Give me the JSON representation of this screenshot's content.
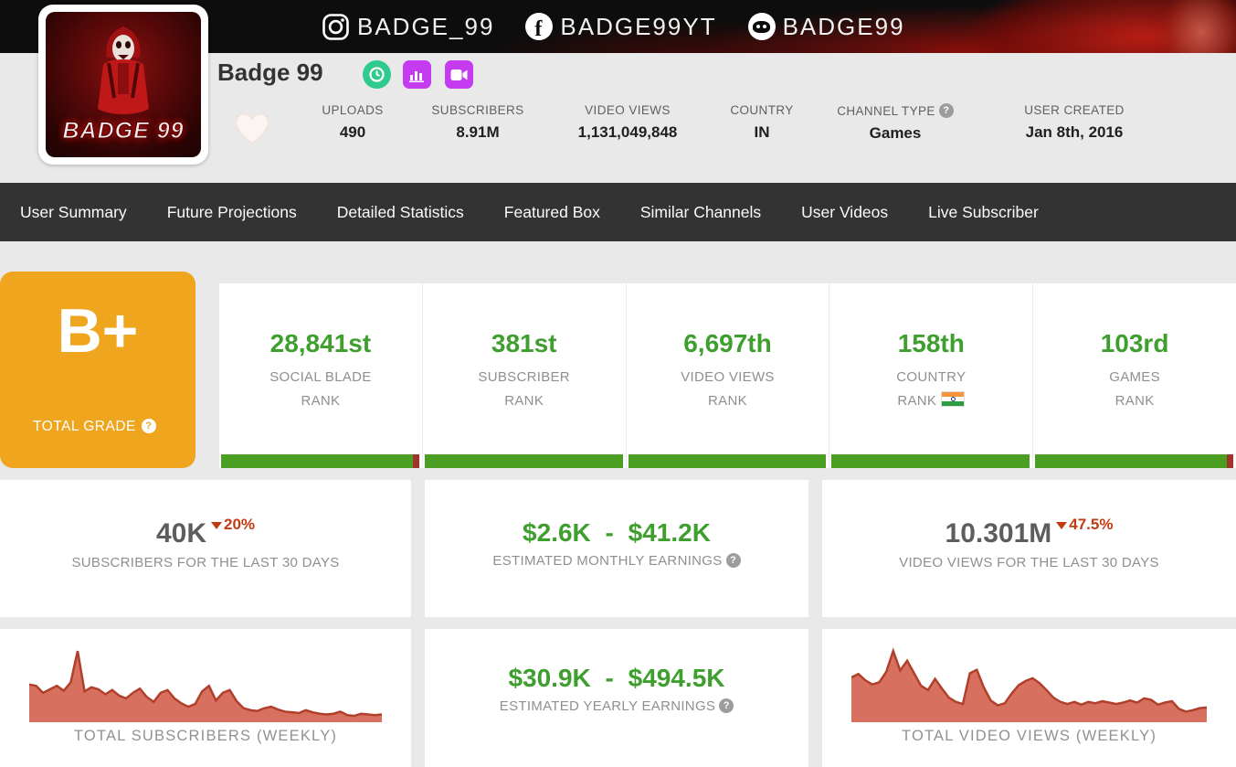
{
  "banner": {
    "instagram_handle": "BADGE_99",
    "facebook_handle": "BADGE99YT",
    "discord_handle": "BADGE99"
  },
  "icons": {
    "help": "?",
    "facebook_glyph": "f"
  },
  "header": {
    "channel_name": "Badge 99",
    "avatar_text": "BADGE 99",
    "stats": [
      {
        "label": "UPLOADS",
        "value": "490"
      },
      {
        "label": "SUBSCRIBERS",
        "value": "8.91M"
      },
      {
        "label": "VIDEO VIEWS",
        "value": "1,131,049,848"
      },
      {
        "label": "COUNTRY",
        "value": "IN"
      },
      {
        "label": "CHANNEL TYPE",
        "value": "Games"
      },
      {
        "label": "USER CREATED",
        "value": "Jan 8th, 2016"
      }
    ]
  },
  "nav": {
    "tabs": [
      {
        "label": "User Summary"
      },
      {
        "label": "Future Projections"
      },
      {
        "label": "Detailed Statistics"
      },
      {
        "label": "Featured Box"
      },
      {
        "label": "Similar Channels"
      },
      {
        "label": "User Videos"
      },
      {
        "label": "Live Subscriber"
      }
    ]
  },
  "grade": {
    "value": "B+",
    "label": "TOTAL GRADE"
  },
  "ranks": [
    {
      "value": "28,841st",
      "label1": "SOCIAL BLADE",
      "label2": "RANK"
    },
    {
      "value": "381st",
      "label1": "SUBSCRIBER",
      "label2": "RANK"
    },
    {
      "value": "6,697th",
      "label1": "VIDEO VIEWS",
      "label2": "RANK"
    },
    {
      "value": "158th",
      "label1": "COUNTRY",
      "label2": "RANK",
      "flag": "IN"
    },
    {
      "value": "103rd",
      "label1": "GAMES",
      "label2": "RANK"
    }
  ],
  "metrics": [
    {
      "value": "40K",
      "change": "20%",
      "direction": "down",
      "label": "SUBSCRIBERS FOR THE LAST 30 DAYS"
    },
    {
      "value": "$2.6K - $41.2K",
      "label": "ESTIMATED MONTHLY EARNINGS"
    },
    {
      "value": "10.301M",
      "change": "47.5%",
      "direction": "down",
      "label": "VIDEO VIEWS FOR THE LAST 30 DAYS"
    }
  ],
  "yearly": {
    "value": "$30.9K - $494.5K",
    "label": "ESTIMATED YEARLY EARNINGS"
  },
  "colors": {
    "accent_green": "#3e9e2e",
    "bar_green": "#4a9e21",
    "bar_red_tip": "#a1342a",
    "alert_red": "#c23a12",
    "grade_orange": "#efa51d",
    "nav_dark": "#333333",
    "chart_fill": "#d8705f",
    "chart_stroke": "#b0402b"
  },
  "chart_data": [
    {
      "type": "area",
      "title": "TOTAL SUBSCRIBERS (WEEKLY)",
      "x_unit": "week",
      "ylabel": "",
      "legend": false,
      "grid": false,
      "fill": "#d8705f",
      "stroke": "#b0402b",
      "values": [
        52,
        50,
        40,
        45,
        50,
        43,
        55,
        100,
        42,
        48,
        45,
        38,
        44,
        36,
        32,
        40,
        46,
        34,
        27,
        40,
        44,
        32,
        25,
        20,
        24,
        42,
        50,
        29,
        40,
        44,
        28,
        18,
        15,
        14,
        18,
        20,
        16,
        13,
        12,
        11,
        15,
        12,
        10,
        9,
        10,
        13,
        8,
        7,
        10,
        9,
        8,
        9
      ]
    },
    {
      "type": "area",
      "title": "TOTAL VIDEO VIEWS (WEEKLY)",
      "x_unit": "week",
      "ylabel": "",
      "legend": false,
      "grid": false,
      "fill": "#d8705f",
      "stroke": "#b0402b",
      "values": [
        62,
        67,
        58,
        52,
        55,
        70,
        100,
        72,
        86,
        68,
        50,
        44,
        60,
        46,
        33,
        27,
        24,
        68,
        73,
        48,
        29,
        22,
        25,
        39,
        51,
        57,
        61,
        54,
        44,
        33,
        27,
        24,
        27,
        23,
        27,
        25,
        28,
        26,
        24,
        26,
        29,
        26,
        32,
        30,
        23,
        26,
        28,
        17,
        13,
        15,
        18,
        19
      ]
    }
  ]
}
